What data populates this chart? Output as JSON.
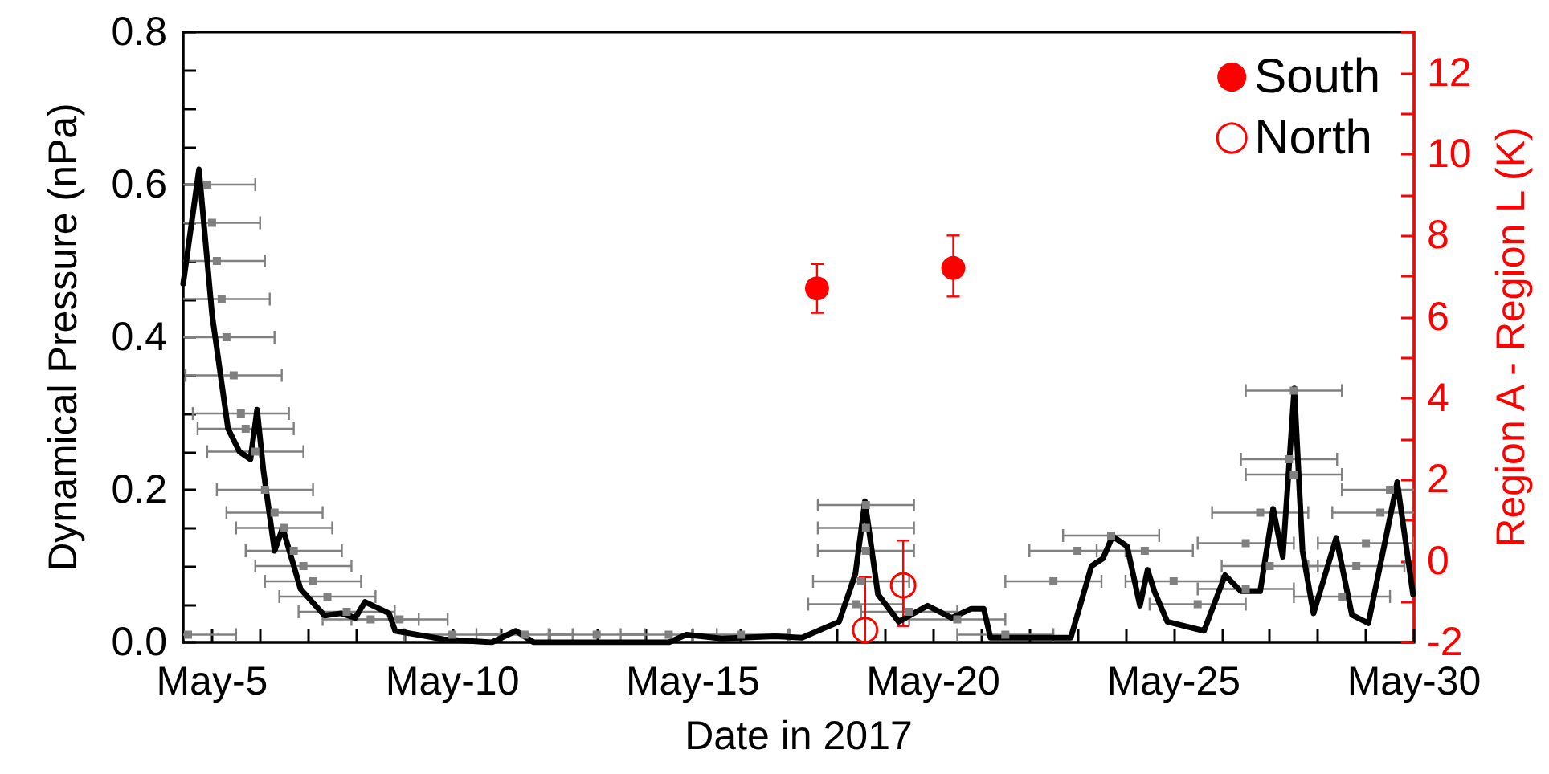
{
  "chart_data": {
    "type": "line",
    "xlabel": "Date in 2017",
    "ylabel": "Dynamical Pressure (nPa)",
    "y2label": "Region A - Region L (K)",
    "xlim": [
      "2017-05-04T09:36",
      "2017-05-30T00:00"
    ],
    "xticks": [
      {
        "value": "2017-05-05",
        "label": "May-5"
      },
      {
        "value": "2017-05-06",
        "label": null
      },
      {
        "value": "2017-05-07",
        "label": null
      },
      {
        "value": "2017-05-08",
        "label": null
      },
      {
        "value": "2017-05-09",
        "label": null
      },
      {
        "value": "2017-05-10",
        "label": "May-10"
      },
      {
        "value": "2017-05-11",
        "label": null
      },
      {
        "value": "2017-05-12",
        "label": null
      },
      {
        "value": "2017-05-13",
        "label": null
      },
      {
        "value": "2017-05-14",
        "label": null
      },
      {
        "value": "2017-05-15",
        "label": "May-15"
      },
      {
        "value": "2017-05-16",
        "label": null
      },
      {
        "value": "2017-05-17",
        "label": null
      },
      {
        "value": "2017-05-18",
        "label": null
      },
      {
        "value": "2017-05-19",
        "label": null
      },
      {
        "value": "2017-05-20",
        "label": "May-20"
      },
      {
        "value": "2017-05-21",
        "label": null
      },
      {
        "value": "2017-05-22",
        "label": null
      },
      {
        "value": "2017-05-23",
        "label": null
      },
      {
        "value": "2017-05-24",
        "label": null
      },
      {
        "value": "2017-05-25",
        "label": "May-25"
      },
      {
        "value": "2017-05-26",
        "label": null
      },
      {
        "value": "2017-05-27",
        "label": null
      },
      {
        "value": "2017-05-28",
        "label": null
      },
      {
        "value": "2017-05-29",
        "label": null
      },
      {
        "value": "2017-05-30",
        "label": "May-30"
      }
    ],
    "ylim": [
      0,
      0.8
    ],
    "yticks": [
      {
        "value": 0,
        "label": "0.0"
      },
      {
        "value": 0.05,
        "label": null
      },
      {
        "value": 0.1,
        "label": null
      },
      {
        "value": 0.15,
        "label": null
      },
      {
        "value": 0.2,
        "label": "0.2"
      },
      {
        "value": 0.25,
        "label": null
      },
      {
        "value": 0.3,
        "label": null
      },
      {
        "value": 0.35,
        "label": null
      },
      {
        "value": 0.4,
        "label": "0.4"
      },
      {
        "value": 0.45,
        "label": null
      },
      {
        "value": 0.5,
        "label": null
      },
      {
        "value": 0.55,
        "label": null
      },
      {
        "value": 0.6,
        "label": "0.6"
      },
      {
        "value": 0.65,
        "label": null
      },
      {
        "value": 0.7,
        "label": null
      },
      {
        "value": 0.75,
        "label": null
      },
      {
        "value": 0.8,
        "label": "0.8"
      }
    ],
    "y2lim": [
      -2,
      13
    ],
    "y2ticks": [
      -2,
      {
        "value": -1,
        "label": null
      },
      0,
      {
        "value": 1,
        "label": null
      },
      2,
      {
        "value": 3,
        "label": null
      },
      4,
      {
        "value": 5,
        "label": null
      },
      6,
      {
        "value": 7,
        "label": null
      },
      8,
      {
        "value": 9,
        "label": null
      },
      10,
      {
        "value": 11,
        "label": null
      },
      12,
      {
        "value": 13,
        "label": null
      }
    ],
    "grid": false,
    "legend": "top right",
    "series": [
      {
        "type": "scatter",
        "color": "#808080",
        "marker": "square",
        "x": [
          "2017-05-04T12:00",
          "2017-05-04T21:36",
          "2017-05-05T00:00",
          "2017-05-05T02:24",
          "2017-05-05T04:48",
          "2017-05-05T07:12",
          "2017-05-05T10:48",
          "2017-05-05T14:24",
          "2017-05-05T16:48",
          "2017-05-05T21:36",
          "2017-05-06T02:24",
          "2017-05-06T07:12",
          "2017-05-06T12:00",
          "2017-05-06T16:48",
          "2017-05-06T21:36",
          "2017-05-07T02:24",
          "2017-05-07T09:36",
          "2017-05-07T19:12",
          "2017-05-08T07:12",
          "2017-05-08T21:36",
          "2017-05-10T00:00",
          "2017-05-11T12:00",
          "2017-05-13T00:00",
          "2017-05-14T12:00",
          "2017-05-16T00:00",
          "2017-05-18T14:24",
          "2017-05-18T14:24",
          "2017-05-18T14:24",
          "2017-05-18T12:00",
          "2017-05-18T09:36",
          "2017-05-19T12:00",
          "2017-05-20T12:00",
          "2017-05-21T12:00",
          "2017-05-22T12:00",
          "2017-05-23T00:00",
          "2017-05-23T16:48",
          "2017-05-24T09:36",
          "2017-05-25T00:00",
          "2017-05-25T12:00",
          "2017-05-27T12:00",
          "2017-05-27T09:36",
          "2017-05-27T12:00",
          "2017-05-26T19:12",
          "2017-05-26T12:00",
          "2017-05-27T00:00",
          "2017-05-26T12:00",
          "2017-05-29T12:00",
          "2017-05-29T07:12",
          "2017-05-29T00:00",
          "2017-05-28T19:12",
          "2017-05-28T12:00"
        ],
        "values": [
          0.01,
          0.6,
          0.55,
          0.5,
          0.45,
          0.4,
          0.35,
          0.3,
          0.28,
          0.25,
          0.2,
          0.17,
          0.15,
          0.12,
          0.1,
          0.08,
          0.06,
          0.04,
          0.03,
          0.03,
          0.01,
          0.01,
          0.01,
          0.01,
          0.01,
          0.18,
          0.15,
          0.12,
          0.08,
          0.05,
          0.04,
          0.03,
          0.01,
          0.08,
          0.12,
          0.14,
          0.12,
          0.08,
          0.05,
          0.33,
          0.24,
          0.22,
          0.17,
          0.13,
          0.1,
          0.07,
          0.2,
          0.17,
          0.13,
          0.1,
          0.06
        ],
        "xerrors": [
          1,
          1,
          1,
          1,
          1,
          1,
          1,
          1,
          1,
          1,
          1,
          1,
          1,
          1,
          1,
          1,
          1,
          1,
          1,
          1,
          1,
          1,
          1,
          1,
          1,
          1,
          1,
          1,
          1,
          1,
          1,
          1,
          1,
          1,
          1,
          1,
          1,
          1,
          1,
          1,
          1,
          1,
          1,
          1,
          1,
          1,
          1,
          1,
          1,
          1,
          1
        ]
      },
      {
        "color": "#000000",
        "marker": "none",
        "line_style": "solid",
        "x": [
          "2017-05-04T09:36",
          "2017-05-04T17:30",
          "2017-05-05T00:00",
          "2017-05-05T08:00",
          "2017-05-05T13:40",
          "2017-05-05T19:12",
          "2017-05-05T22:30",
          "2017-05-06T01:40",
          "2017-05-06T07:12",
          "2017-05-06T11:15",
          "2017-05-06T20:10",
          "2017-05-07T08:10",
          "2017-05-07T16:20",
          "2017-05-07T23:30",
          "2017-05-08T04:20",
          "2017-05-08T16:20",
          "2017-05-08T19:25",
          "2017-05-09T19:40",
          "2017-05-10T19:40",
          "2017-05-11T07:40",
          "2017-05-11T16:35",
          "2017-05-13T03:50",
          "2017-05-14T12:00",
          "2017-05-14T20:50",
          "2017-05-15T14:24",
          "2017-05-16T17:00",
          "2017-05-17T06:30",
          "2017-05-18T01:00",
          "2017-05-18T09:10",
          "2017-05-18T13:55",
          "2017-05-18T20:24",
          "2017-05-19T06:45",
          "2017-05-19T21:10",
          "2017-05-20T09:10",
          "2017-05-20T19:00",
          "2017-05-21T01:12",
          "2017-05-21T04:35",
          "2017-05-22T20:40",
          "2017-05-23T07:00",
          "2017-05-23T12:45",
          "2017-05-23T17:30",
          "2017-05-24T00:45",
          "2017-05-24T07:12",
          "2017-05-24T11:00",
          "2017-05-24T14:24",
          "2017-05-24T20:50",
          "2017-05-25T15:10",
          "2017-05-26T01:40",
          "2017-05-26T09:36",
          "2017-05-26T19:12",
          "2017-05-27T01:40",
          "2017-05-27T06:30",
          "2017-05-27T12:15",
          "2017-05-27T16:20",
          "2017-05-27T21:50",
          "2017-05-28T09:10",
          "2017-05-28T17:00",
          "2017-05-29T01:12",
          "2017-05-29T15:36",
          "2017-05-29T23:30"
        ],
        "values": [
          0.47,
          0.62,
          0.43,
          0.28,
          0.25,
          0.24,
          0.305,
          0.225,
          0.12,
          0.15,
          0.07,
          0.035,
          0.038,
          0.032,
          0.053,
          0.038,
          0.015,
          0.004,
          0,
          0.015,
          0,
          0,
          0,
          0.01,
          0.005,
          0.008,
          0.006,
          0.027,
          0.09,
          0.185,
          0.063,
          0.027,
          0.048,
          0.032,
          0.044,
          0.044,
          0.006,
          0.006,
          0.1,
          0.11,
          0.139,
          0.126,
          0.048,
          0.095,
          0.067,
          0.027,
          0.015,
          0.088,
          0.067,
          0.067,
          0.175,
          0.112,
          0.333,
          0.12,
          0.038,
          0.137,
          0.036,
          0.025,
          0.21,
          0.063
        ]
      },
      {
        "type": "scatter",
        "name": "South",
        "color": "#ff0000",
        "marker": "circle",
        "axis": "y2",
        "x": [
          "2017-05-17T14:00",
          "2017-05-20T10:00"
        ],
        "values": [
          6.7,
          7.2
        ],
        "errors": [
          [
            6.1,
            7.3
          ],
          [
            6.5,
            8.0
          ]
        ]
      },
      {
        "type": "scatter",
        "name": "North",
        "color": "#ff0000",
        "marker": "open circle",
        "axis": "y2",
        "x": [
          "2017-05-18T14:00",
          "2017-05-19T09:00"
        ],
        "values": [
          -1.7,
          -0.6
        ],
        "errors": [
          [
            -2,
            -0.4
          ],
          [
            -1.6,
            0.5
          ]
        ]
      }
    ]
  }
}
